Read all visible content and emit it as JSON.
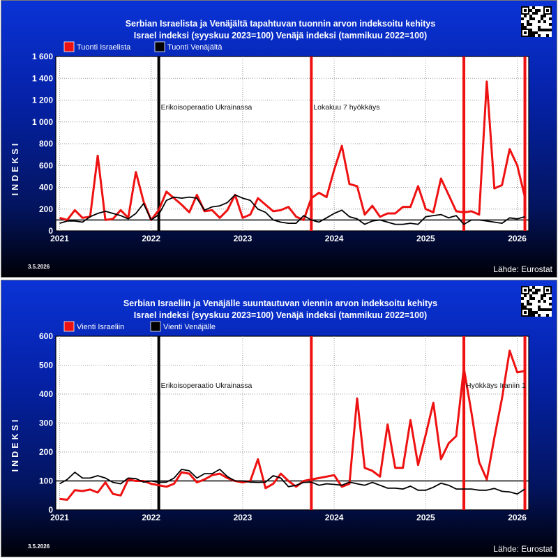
{
  "source": "Lähde: Eurostat",
  "date": "3.5.2026",
  "chart_data": [
    {
      "type": "line",
      "title": [
        "Serbian Israelista ja Venäjältä tapahtuvan tuonnin arvon indeksoitu kehitys",
        "Israel indeksi (syyskuu 2023=100) Venäjä indeksi (tammikuu 2022=100)"
      ],
      "ylabel": "INDEKSI",
      "ylim": [
        0,
        1600
      ],
      "yticks": [
        0,
        200,
        400,
        600,
        800,
        1000,
        1200,
        1400,
        1600
      ],
      "ytick_labels": [
        "0",
        "200",
        "400",
        "600",
        "800",
        "1 000",
        "1 200",
        "1 400",
        "1 600"
      ],
      "xticks": [
        "2021",
        "2022",
        "2023",
        "2024",
        "2025",
        "2026"
      ],
      "reference_line": 100,
      "x": [
        "2021-01",
        "2021-02",
        "2021-03",
        "2021-04",
        "2021-05",
        "2021-06",
        "2021-07",
        "2021-08",
        "2021-09",
        "2021-10",
        "2021-11",
        "2021-12",
        "2022-01",
        "2022-02",
        "2022-03",
        "2022-04",
        "2022-05",
        "2022-06",
        "2022-07",
        "2022-08",
        "2022-09",
        "2022-10",
        "2022-11",
        "2022-12",
        "2023-01",
        "2023-02",
        "2023-03",
        "2023-04",
        "2023-05",
        "2023-06",
        "2023-07",
        "2023-08",
        "2023-09",
        "2023-10",
        "2023-11",
        "2023-12",
        "2024-01",
        "2024-02",
        "2024-03",
        "2024-04",
        "2024-05",
        "2024-06",
        "2024-07",
        "2024-08",
        "2024-09",
        "2024-10",
        "2024-11",
        "2024-12",
        "2025-01",
        "2025-02",
        "2025-03",
        "2025-04",
        "2025-05",
        "2025-06",
        "2025-07",
        "2025-08",
        "2025-09",
        "2025-10",
        "2025-11",
        "2025-12",
        "2026-01",
        "2026-02"
      ],
      "series": [
        {
          "name": "Tuonti Israelista",
          "color": "#ee1111",
          "values": [
            120,
            100,
            190,
            120,
            130,
            690,
            100,
            110,
            190,
            120,
            540,
            270,
            100,
            190,
            360,
            300,
            240,
            170,
            330,
            180,
            190,
            120,
            190,
            330,
            120,
            150,
            300,
            240,
            180,
            190,
            220,
            130,
            100,
            300,
            350,
            310,
            560,
            780,
            430,
            410,
            150,
            230,
            130,
            160,
            160,
            220,
            220,
            410,
            200,
            170,
            480,
            330,
            180,
            170,
            180,
            150,
            1370,
            390,
            420,
            750,
            600,
            310
          ]
        },
        {
          "name": "Tuonti Venäjältä",
          "color": "#000000",
          "values": [
            70,
            90,
            90,
            80,
            130,
            160,
            180,
            160,
            140,
            110,
            160,
            250,
            100,
            150,
            280,
            310,
            300,
            310,
            300,
            190,
            220,
            230,
            260,
            330,
            300,
            280,
            200,
            170,
            100,
            80,
            70,
            70,
            140,
            100,
            80,
            120,
            160,
            190,
            130,
            110,
            60,
            90,
            100,
            80,
            60,
            60,
            70,
            60,
            130,
            140,
            150,
            120,
            140,
            60,
            100,
            100,
            90,
            80,
            70,
            120,
            110,
            130
          ]
        }
      ],
      "annotations": [
        {
          "x": "2022-02",
          "label": "Erikoisoperaatio Ukrainassa",
          "color": "#000000"
        },
        {
          "x": "2023-10",
          "label": "Lokakuu 7 hyökkäys",
          "color": "#ee1111"
        },
        {
          "x": "2025-06",
          "label": "",
          "color": "#ee1111"
        },
        {
          "x": "2026-02",
          "label": "",
          "color": "#ee1111"
        }
      ]
    },
    {
      "type": "line",
      "title": [
        "Serbian Israeliin ja Venäjälle suuntautuvan viennin arvon indeksoitu kehitys",
        "Israel indeksi (syyskuu 2023=100) Venäjä indeksi (tammikuu 2022=100)"
      ],
      "ylabel": "INDEKSI",
      "ylim": [
        0,
        600
      ],
      "yticks": [
        0,
        100,
        200,
        300,
        400,
        500,
        600
      ],
      "ytick_labels": [
        "0",
        "100",
        "200",
        "300",
        "400",
        "500",
        "600"
      ],
      "xticks": [
        "2021",
        "2022",
        "2023",
        "2024",
        "2025",
        "2026"
      ],
      "reference_line": 100,
      "x": [
        "2021-01",
        "2021-02",
        "2021-03",
        "2021-04",
        "2021-05",
        "2021-06",
        "2021-07",
        "2021-08",
        "2021-09",
        "2021-10",
        "2021-11",
        "2021-12",
        "2022-01",
        "2022-02",
        "2022-03",
        "2022-04",
        "2022-05",
        "2022-06",
        "2022-07",
        "2022-08",
        "2022-09",
        "2022-10",
        "2022-11",
        "2022-12",
        "2023-01",
        "2023-02",
        "2023-03",
        "2023-04",
        "2023-05",
        "2023-06",
        "2023-07",
        "2023-08",
        "2023-09",
        "2023-10",
        "2023-11",
        "2023-12",
        "2024-01",
        "2024-02",
        "2024-03",
        "2024-04",
        "2024-05",
        "2024-06",
        "2024-07",
        "2024-08",
        "2024-09",
        "2024-10",
        "2024-11",
        "2024-12",
        "2025-01",
        "2025-02",
        "2025-03",
        "2025-04",
        "2025-05",
        "2025-06",
        "2025-07",
        "2025-08",
        "2025-09",
        "2025-10",
        "2025-11",
        "2025-12",
        "2026-01",
        "2026-02"
      ],
      "series": [
        {
          "name": "Vienti Israeliin",
          "color": "#ee1111",
          "values": [
            38,
            35,
            68,
            65,
            70,
            60,
            95,
            55,
            50,
            105,
            100,
            100,
            90,
            85,
            80,
            90,
            130,
            125,
            95,
            105,
            120,
            125,
            110,
            100,
            95,
            100,
            175,
            75,
            90,
            125,
            100,
            80,
            100,
            105,
            110,
            115,
            120,
            80,
            90,
            385,
            145,
            135,
            115,
            295,
            145,
            145,
            310,
            155,
            260,
            370,
            175,
            230,
            255,
            490,
            335,
            165,
            105,
            250,
            385,
            550,
            475,
            480
          ]
        },
        {
          "name": "Vienti Venäjälle",
          "color": "#000000",
          "values": [
            90,
            105,
            130,
            110,
            110,
            118,
            110,
            95,
            90,
            110,
            108,
            96,
            100,
            95,
            96,
            110,
            140,
            135,
            110,
            125,
            125,
            140,
            115,
            100,
            100,
            96,
            95,
            96,
            118,
            110,
            80,
            85,
            95,
            96,
            85,
            90,
            88,
            85,
            96,
            90,
            85,
            95,
            85,
            75,
            75,
            72,
            82,
            68,
            68,
            78,
            92,
            85,
            72,
            72,
            72,
            68,
            68,
            74,
            64,
            62,
            55,
            72
          ]
        }
      ],
      "annotations": [
        {
          "x": "2022-02",
          "label": "Erikoisoperaatio Ukrainassa",
          "color": "#000000"
        },
        {
          "x": "2023-10",
          "label": "",
          "color": "#ee1111"
        },
        {
          "x": "2025-06",
          "label": "Hyökkäys Iraniin 1",
          "color": "#ee1111"
        },
        {
          "x": "2026-02",
          "label": "",
          "color": "#ee1111"
        }
      ]
    }
  ]
}
